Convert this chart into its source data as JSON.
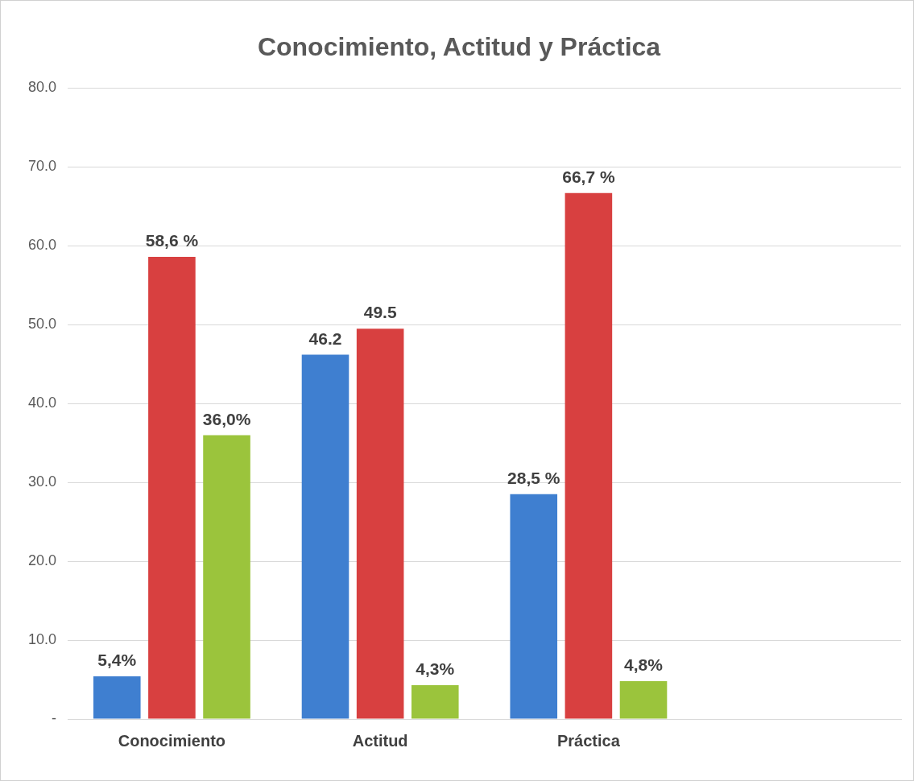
{
  "chart_data": {
    "type": "bar",
    "title": "Conocimiento, Actitud y Práctica",
    "categories": [
      "Conocimiento",
      "Actitud",
      "Práctica",
      null
    ],
    "series": [
      {
        "color": "#3f7fd0",
        "values": [
          5.4,
          46.2,
          28.5,
          null
        ],
        "value_labels": [
          "5,4%",
          "46.2",
          "28,5 %",
          null
        ]
      },
      {
        "color": "#d84040",
        "values": [
          58.6,
          49.5,
          66.7,
          null
        ],
        "value_labels": [
          "58,6 %",
          "49.5",
          "66,7 %",
          null
        ]
      },
      {
        "color": "#9bc43c",
        "values": [
          36.0,
          4.3,
          4.8,
          null
        ],
        "value_labels": [
          "36,0%",
          "4,3%",
          "4,8%",
          null
        ]
      }
    ],
    "ylim": [
      0,
      80
    ],
    "yticks": [
      {
        "value": 0,
        "label": "-"
      },
      {
        "value": 10,
        "label": "10.0"
      },
      {
        "value": 20,
        "label": "20.0"
      },
      {
        "value": 30,
        "label": "30.0"
      },
      {
        "value": 40,
        "label": "40.0"
      },
      {
        "value": 50,
        "label": "50.0"
      },
      {
        "value": 60,
        "label": "60.0"
      },
      {
        "value": 70,
        "label": "70.0"
      },
      {
        "value": 80,
        "label": "80.0"
      }
    ],
    "grid": "y",
    "legend": false
  }
}
